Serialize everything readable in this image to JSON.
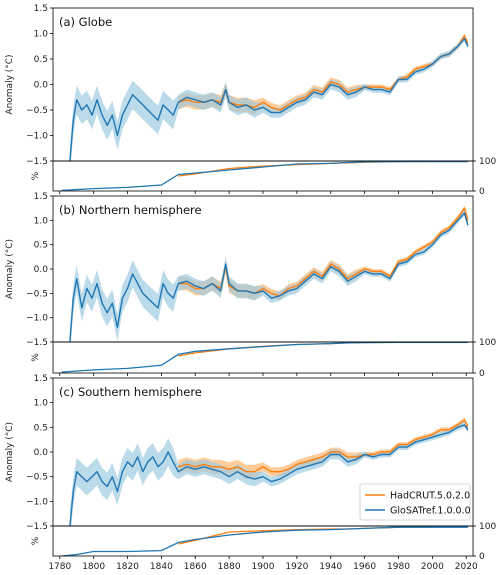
{
  "colors": {
    "hadcrut": "#ff7f0e",
    "glosat": "#1f77b4",
    "hadcrut_band": "#ffbb78",
    "glosat_band": "#9ecae1",
    "axis": "#000000"
  },
  "chart_data": {
    "type": "line",
    "x_range": [
      1776,
      2024
    ],
    "x_ticks": [
      "1780",
      "1800",
      "1820",
      "1840",
      "1860",
      "1880",
      "1900",
      "1920",
      "1940",
      "1960",
      "1980",
      "2000",
      "2020"
    ],
    "anomaly_ylabel": "Anomaly (°C)",
    "anomaly_ylim": [
      -1.5,
      1.5
    ],
    "anomaly_yticks": [
      "-1.5",
      "-1.0",
      "-0.5",
      "0.0",
      "0.5",
      "1.0",
      "1.5"
    ],
    "coverage_ylabel": "%",
    "coverage_ylim": [
      0,
      100
    ],
    "coverage_yticks": [
      "0",
      "100"
    ],
    "legend": {
      "position": "bottom-right of panel (c)",
      "entries": [
        {
          "name": "HadCRUT.5.0.2.0",
          "color": "#ff7f0e"
        },
        {
          "name": "GloSATref.1.0.0.0",
          "color": "#1f77b4"
        }
      ]
    },
    "panels": [
      {
        "title": "(a) Globe",
        "series": [
          {
            "name": "GloSATref.1.0.0.0",
            "x": [
              1786,
              1788,
              1790,
              1793,
              1796,
              1799,
              1802,
              1805,
              1808,
              1811,
              1814,
              1817,
              1820,
              1823,
              1826,
              1829,
              1832,
              1835,
              1838,
              1841,
              1844,
              1847,
              1850,
              1855,
              1860,
              1865,
              1870,
              1875,
              1878,
              1880,
              1885,
              1890,
              1895,
              1900,
              1905,
              1910,
              1915,
              1920,
              1925,
              1930,
              1935,
              1940,
              1945,
              1950,
              1955,
              1960,
              1965,
              1970,
              1975,
              1980,
              1985,
              1990,
              1995,
              2000,
              2005,
              2010,
              2015,
              2019,
              2021
            ],
            "values": [
              -1.5,
              -0.7,
              -0.3,
              -0.5,
              -0.4,
              -0.6,
              -0.3,
              -0.6,
              -0.8,
              -0.6,
              -1.0,
              -0.6,
              -0.4,
              -0.2,
              -0.3,
              -0.4,
              -0.5,
              -0.6,
              -0.7,
              -0.4,
              -0.5,
              -0.6,
              -0.35,
              -0.25,
              -0.3,
              -0.35,
              -0.3,
              -0.4,
              -0.1,
              -0.35,
              -0.45,
              -0.4,
              -0.5,
              -0.45,
              -0.55,
              -0.55,
              -0.45,
              -0.35,
              -0.3,
              -0.15,
              -0.2,
              0.0,
              -0.05,
              -0.2,
              -0.15,
              -0.05,
              -0.1,
              -0.1,
              -0.15,
              0.1,
              0.1,
              0.25,
              0.3,
              0.4,
              0.55,
              0.6,
              0.75,
              0.9,
              0.75
            ]
          },
          {
            "name": "HadCRUT.5.0.2.0",
            "x": [
              1850,
              1855,
              1860,
              1865,
              1870,
              1875,
              1878,
              1880,
              1885,
              1890,
              1895,
              1900,
              1905,
              1910,
              1915,
              1920,
              1925,
              1930,
              1935,
              1940,
              1945,
              1950,
              1955,
              1960,
              1965,
              1970,
              1975,
              1980,
              1985,
              1990,
              1995,
              2000,
              2005,
              2010,
              2015,
              2019,
              2021
            ],
            "values": [
              -0.35,
              -0.3,
              -0.35,
              -0.35,
              -0.3,
              -0.35,
              -0.1,
              -0.35,
              -0.4,
              -0.4,
              -0.45,
              -0.35,
              -0.45,
              -0.5,
              -0.4,
              -0.3,
              -0.25,
              -0.1,
              -0.15,
              0.05,
              0.0,
              -0.15,
              -0.1,
              -0.05,
              -0.05,
              -0.05,
              -0.1,
              0.1,
              0.15,
              0.3,
              0.35,
              0.4,
              0.55,
              0.6,
              0.75,
              0.95,
              0.8
            ]
          }
        ],
        "coverage": {
          "GloSATref.1.0.0.0": {
            "x": [
              1781,
              1800,
              1820,
              1840,
              1850,
              1860,
              1880,
              1900,
              1920,
              1940,
              1950,
              1960,
              1980,
              2000,
              2021
            ],
            "values": [
              2,
              8,
              12,
              20,
              55,
              60,
              70,
              80,
              90,
              92,
              95,
              97,
              98,
              98,
              98
            ]
          },
          "HadCRUT.5.0.2.0": {
            "x": [
              1850,
              1860,
              1880,
              1900,
              1920,
              1940,
              1950,
              1960,
              1980,
              2000,
              2021
            ],
            "values": [
              50,
              57,
              75,
              83,
              88,
              92,
              94,
              96,
              98,
              99,
              99
            ]
          }
        }
      },
      {
        "title": "(b) Northern hemisphere",
        "series": [
          {
            "name": "GloSATref.1.0.0.0",
            "x": [
              1786,
              1788,
              1790,
              1793,
              1796,
              1799,
              1802,
              1805,
              1808,
              1811,
              1814,
              1817,
              1820,
              1823,
              1826,
              1829,
              1832,
              1835,
              1838,
              1841,
              1844,
              1847,
              1850,
              1855,
              1860,
              1865,
              1870,
              1875,
              1878,
              1880,
              1885,
              1890,
              1895,
              1900,
              1905,
              1910,
              1915,
              1920,
              1925,
              1930,
              1935,
              1940,
              1945,
              1950,
              1955,
              1960,
              1965,
              1970,
              1975,
              1980,
              1985,
              1990,
              1995,
              2000,
              2005,
              2010,
              2015,
              2019,
              2021
            ],
            "values": [
              -1.5,
              -0.6,
              -0.2,
              -0.8,
              -0.4,
              -0.6,
              -0.3,
              -0.7,
              -0.9,
              -0.7,
              -1.2,
              -0.6,
              -0.4,
              -0.1,
              -0.3,
              -0.5,
              -0.6,
              -0.7,
              -0.8,
              -0.3,
              -0.5,
              -0.6,
              -0.3,
              -0.25,
              -0.35,
              -0.4,
              -0.3,
              -0.45,
              0.1,
              -0.3,
              -0.45,
              -0.45,
              -0.5,
              -0.45,
              -0.6,
              -0.55,
              -0.45,
              -0.4,
              -0.25,
              -0.1,
              -0.2,
              0.05,
              -0.05,
              -0.25,
              -0.15,
              -0.05,
              -0.1,
              -0.1,
              -0.2,
              0.1,
              0.15,
              0.3,
              0.35,
              0.5,
              0.7,
              0.8,
              1.0,
              1.15,
              0.9
            ]
          },
          {
            "name": "HadCRUT.5.0.2.0",
            "x": [
              1850,
              1855,
              1860,
              1865,
              1870,
              1875,
              1878,
              1880,
              1885,
              1890,
              1895,
              1900,
              1905,
              1910,
              1915,
              1920,
              1925,
              1930,
              1935,
              1940,
              1945,
              1950,
              1955,
              1960,
              1965,
              1970,
              1975,
              1980,
              1985,
              1990,
              1995,
              2000,
              2005,
              2010,
              2015,
              2019,
              2021
            ],
            "values": [
              -0.3,
              -0.3,
              -0.4,
              -0.4,
              -0.3,
              -0.4,
              0.05,
              -0.35,
              -0.45,
              -0.45,
              -0.5,
              -0.4,
              -0.5,
              -0.55,
              -0.4,
              -0.35,
              -0.2,
              -0.05,
              -0.15,
              0.1,
              0.0,
              -0.2,
              -0.1,
              0.0,
              -0.05,
              -0.05,
              -0.15,
              0.15,
              0.2,
              0.35,
              0.45,
              0.55,
              0.75,
              0.85,
              1.05,
              1.25,
              1.0
            ]
          }
        ],
        "coverage": {
          "GloSATref.1.0.0.0": {
            "x": [
              1781,
              1800,
              1820,
              1840,
              1850,
              1860,
              1880,
              1900,
              1920,
              1940,
              1950,
              1960,
              1980,
              2000,
              2021
            ],
            "values": [
              3,
              10,
              15,
              25,
              60,
              70,
              78,
              85,
              92,
              95,
              97,
              98,
              99,
              99,
              99
            ]
          },
          "HadCRUT.5.0.2.0": {
            "x": [
              1850,
              1860,
              1880,
              1900,
              1920,
              1940,
              1950,
              1960,
              1980,
              2000,
              2021
            ],
            "values": [
              55,
              65,
              78,
              86,
              92,
              95,
              97,
              98,
              99,
              99,
              99
            ]
          }
        }
      },
      {
        "title": "(c) Southern hemisphere",
        "series": [
          {
            "name": "GloSATref.1.0.0.0",
            "x": [
              1786,
              1788,
              1790,
              1793,
              1796,
              1799,
              1802,
              1805,
              1808,
              1811,
              1814,
              1817,
              1820,
              1823,
              1826,
              1829,
              1832,
              1835,
              1838,
              1841,
              1844,
              1847,
              1850,
              1855,
              1860,
              1865,
              1870,
              1875,
              1880,
              1885,
              1890,
              1895,
              1900,
              1905,
              1910,
              1915,
              1920,
              1925,
              1930,
              1935,
              1940,
              1945,
              1950,
              1955,
              1960,
              1965,
              1970,
              1975,
              1980,
              1985,
              1990,
              1995,
              2000,
              2005,
              2010,
              2015,
              2019,
              2021
            ],
            "values": [
              -1.5,
              -0.8,
              -0.4,
              -0.5,
              -0.6,
              -0.5,
              -0.4,
              -0.6,
              -0.7,
              -0.5,
              -0.8,
              -0.4,
              -0.2,
              -0.3,
              -0.1,
              -0.4,
              -0.2,
              -0.1,
              -0.3,
              -0.2,
              0.0,
              -0.2,
              -0.4,
              -0.3,
              -0.35,
              -0.3,
              -0.35,
              -0.4,
              -0.5,
              -0.4,
              -0.5,
              -0.55,
              -0.5,
              -0.6,
              -0.55,
              -0.45,
              -0.35,
              -0.3,
              -0.25,
              -0.2,
              -0.05,
              -0.05,
              -0.2,
              -0.15,
              -0.05,
              -0.1,
              -0.05,
              -0.05,
              0.1,
              0.1,
              0.2,
              0.25,
              0.3,
              0.35,
              0.4,
              0.5,
              0.55,
              0.45
            ]
          },
          {
            "name": "HadCRUT.5.0.2.0",
            "x": [
              1850,
              1855,
              1860,
              1865,
              1870,
              1875,
              1880,
              1885,
              1890,
              1895,
              1900,
              1905,
              1910,
              1915,
              1920,
              1925,
              1930,
              1935,
              1940,
              1945,
              1950,
              1955,
              1960,
              1965,
              1970,
              1975,
              1980,
              1985,
              1990,
              1995,
              2000,
              2005,
              2010,
              2015,
              2019,
              2021
            ],
            "values": [
              -0.3,
              -0.25,
              -0.3,
              -0.25,
              -0.3,
              -0.3,
              -0.35,
              -0.3,
              -0.4,
              -0.4,
              -0.3,
              -0.4,
              -0.4,
              -0.35,
              -0.25,
              -0.2,
              -0.15,
              -0.1,
              0.0,
              0.0,
              -0.1,
              -0.1,
              -0.05,
              -0.05,
              0.0,
              0.0,
              0.15,
              0.15,
              0.25,
              0.3,
              0.35,
              0.45,
              0.45,
              0.55,
              0.65,
              0.5
            ]
          }
        ],
        "coverage": {
          "GloSATref.1.0.0.0": {
            "x": [
              1781,
              1790,
              1800,
              1820,
              1840,
              1850,
              1860,
              1880,
              1900,
              1920,
              1940,
              1950,
              1960,
              1980,
              2000,
              2021
            ],
            "values": [
              0,
              5,
              15,
              15,
              18,
              45,
              55,
              70,
              80,
              86,
              88,
              90,
              92,
              96,
              96,
              96
            ]
          },
          "HadCRUT.5.0.2.0": {
            "x": [
              1850,
              1860,
              1880,
              1900,
              1920,
              1940,
              1950,
              1960,
              1980,
              2000,
              2021
            ],
            "values": [
              40,
              52,
              80,
              84,
              88,
              90,
              90,
              92,
              96,
              97,
              97
            ]
          }
        }
      }
    ]
  }
}
